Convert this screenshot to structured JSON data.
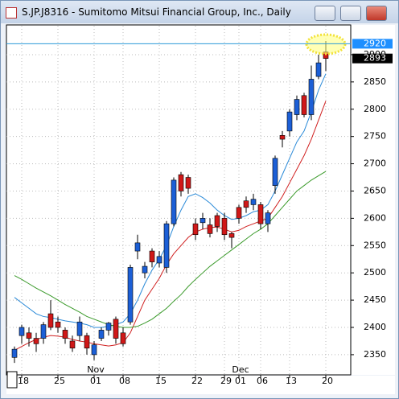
{
  "window": {
    "title": "S.JP.J8316 - Sumitomo Mitsui Financial Group, Inc., Daily"
  },
  "chart_data": {
    "type": "candlestick",
    "categories": [
      null,
      "18",
      null,
      null,
      null,
      null,
      "25",
      null,
      null,
      null,
      null,
      "01",
      null,
      null,
      null,
      "08",
      null,
      null,
      null,
      null,
      "15",
      null,
      null,
      null,
      null,
      "22",
      null,
      null,
      null,
      "29",
      null,
      "01",
      null,
      null,
      "06",
      null,
      null,
      null,
      "13",
      null,
      null,
      null,
      null,
      "20"
    ],
    "months": [
      null,
      null,
      null,
      null,
      null,
      null,
      null,
      null,
      null,
      null,
      null,
      "Nov",
      null,
      null,
      null,
      null,
      null,
      null,
      null,
      null,
      null,
      null,
      null,
      null,
      null,
      null,
      null,
      null,
      null,
      null,
      null,
      "Dec",
      null,
      null,
      null,
      null,
      null,
      null,
      null,
      null,
      null,
      null,
      null,
      null
    ],
    "open": [
      2345,
      2385,
      2390,
      2380,
      2380,
      2425,
      2410,
      2395,
      2375,
      2385,
      2385,
      2350,
      2380,
      2395,
      2415,
      2390,
      2410,
      2540,
      2500,
      2540,
      2518,
      2510,
      2590,
      2680,
      2675,
      2590,
      2592,
      2588,
      2605,
      2600,
      2572,
      2620,
      2632,
      2625,
      2625,
      2590,
      2660,
      2752,
      2760,
      2790,
      2825,
      2790,
      2860,
      2905
    ],
    "high": [
      2365,
      2405,
      2400,
      2390,
      2410,
      2450,
      2420,
      2400,
      2385,
      2420,
      2390,
      2375,
      2400,
      2410,
      2420,
      2400,
      2515,
      2570,
      2520,
      2545,
      2540,
      2595,
      2675,
      2685,
      2680,
      2600,
      2610,
      2600,
      2610,
      2610,
      2575,
      2625,
      2640,
      2645,
      2630,
      2615,
      2715,
      2760,
      2800,
      2825,
      2830,
      2880,
      2900,
      2925
    ],
    "low": [
      2335,
      2370,
      2365,
      2355,
      2370,
      2395,
      2390,
      2370,
      2355,
      2375,
      2350,
      2340,
      2375,
      2385,
      2370,
      2365,
      2405,
      2525,
      2490,
      2510,
      2510,
      2500,
      2585,
      2640,
      2645,
      2560,
      2580,
      2565,
      2575,
      2560,
      2545,
      2590,
      2610,
      2615,
      2580,
      2575,
      2645,
      2730,
      2750,
      2780,
      2785,
      2780,
      2855,
      2870
    ],
    "close": [
      2360,
      2400,
      2380,
      2370,
      2405,
      2400,
      2400,
      2380,
      2362,
      2410,
      2362,
      2368,
      2395,
      2408,
      2380,
      2370,
      2510,
      2555,
      2512,
      2520,
      2530,
      2590,
      2670,
      2650,
      2655,
      2570,
      2600,
      2572,
      2585,
      2570,
      2565,
      2600,
      2620,
      2635,
      2590,
      2610,
      2710,
      2745,
      2795,
      2818,
      2790,
      2855,
      2885,
      2893
    ],
    "up_color": "#1c5fd6",
    "down_color": "#d01818",
    "series": [
      {
        "color": "#2a8ad8",
        "values": [
          2455,
          2445,
          2435,
          2425,
          2420,
          2418,
          2415,
          2412,
          2410,
          2408,
          2405,
          2400,
          2400,
          2402,
          2405,
          2410,
          2425,
          2450,
          2480,
          2505,
          2525,
          2550,
          2585,
          2615,
          2640,
          2645,
          2638,
          2628,
          2615,
          2605,
          2598,
          2600,
          2605,
          2612,
          2615,
          2625,
          2650,
          2680,
          2710,
          2740,
          2760,
          2795,
          2835,
          2865
        ]
      },
      {
        "color": "#d02020",
        "values": [
          2358,
          2365,
          2372,
          2378,
          2382,
          2385,
          2384,
          2382,
          2378,
          2375,
          2373,
          2370,
          2368,
          2366,
          2368,
          2372,
          2390,
          2420,
          2450,
          2470,
          2490,
          2515,
          2535,
          2550,
          2565,
          2575,
          2580,
          2583,
          2584,
          2580,
          2575,
          2578,
          2585,
          2590,
          2595,
          2600,
          2620,
          2640,
          2665,
          2690,
          2715,
          2745,
          2780,
          2815
        ]
      },
      {
        "color": "#3a9a2a",
        "values": [
          2495,
          2488,
          2480,
          2472,
          2465,
          2458,
          2450,
          2442,
          2435,
          2428,
          2420,
          2415,
          2410,
          2405,
          2402,
          2400,
          2400,
          2402,
          2408,
          2415,
          2425,
          2435,
          2448,
          2460,
          2475,
          2488,
          2500,
          2512,
          2522,
          2532,
          2542,
          2552,
          2562,
          2572,
          2580,
          2590,
          2605,
          2620,
          2635,
          2650,
          2660,
          2670,
          2678,
          2686
        ]
      }
    ],
    "price_lines": [
      {
        "value": 2920,
        "color": "#1e8fff"
      },
      {
        "value": 2893,
        "color": "#000000"
      }
    ],
    "ylim": [
      2313,
      2953
    ],
    "yticks": [
      2350,
      2400,
      2450,
      2500,
      2550,
      2600,
      2650,
      2700,
      2750,
      2800,
      2850,
      2900
    ],
    "grid": true
  }
}
